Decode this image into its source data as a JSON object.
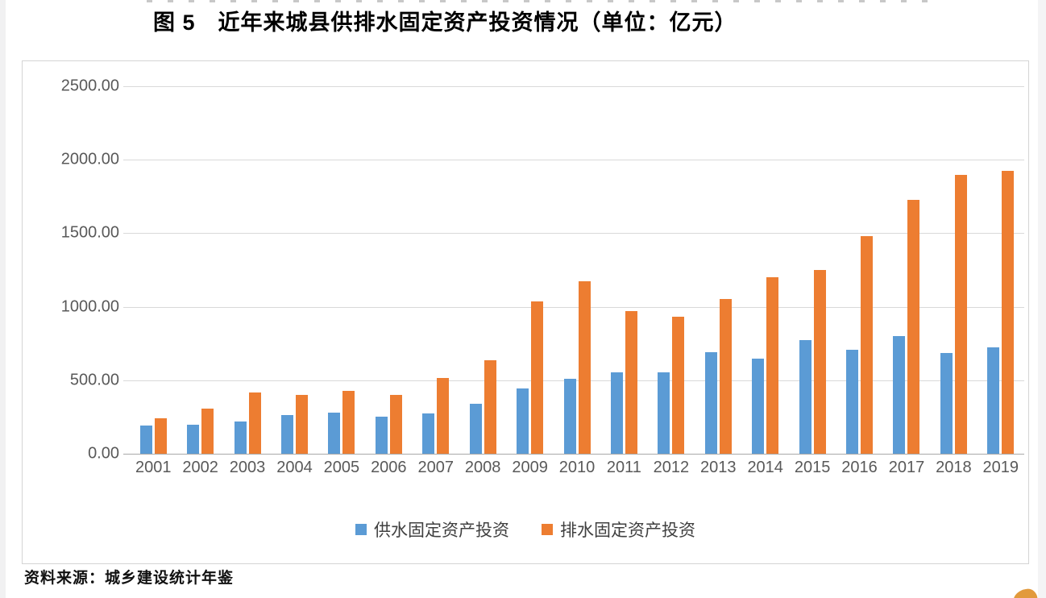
{
  "page": {
    "title": "图 5　近年来城县供排水固定资产投资情况（单位：亿元）",
    "source_note": "资料来源：城乡建设统计年鉴"
  },
  "colors": {
    "water_supply_series": "#5B9BD5",
    "drainage_series": "#ED7D31",
    "axis_text": "#595959",
    "gridline": "#D9D9D9",
    "axis_line": "#A9A9A9",
    "frame_border": "#D4D4D4"
  },
  "chart_data": {
    "type": "bar",
    "title": "图 5　近年来城县供排水固定资产投资情况（单位：亿元）",
    "unit": "亿元",
    "categories": [
      "2001",
      "2002",
      "2003",
      "2004",
      "2005",
      "2006",
      "2007",
      "2008",
      "2009",
      "2010",
      "2011",
      "2012",
      "2013",
      "2014",
      "2015",
      "2016",
      "2017",
      "2018",
      "2019"
    ],
    "series": [
      {
        "name": "供水固定资产投资",
        "color": "#5B9BD5",
        "values": [
          193,
          197,
          218,
          265,
          278,
          250,
          275,
          340,
          447,
          510,
          556,
          553,
          690,
          645,
          772,
          706,
          801,
          686,
          724
        ]
      },
      {
        "name": "排水固定资产投资",
        "color": "#ED7D31",
        "values": [
          243,
          305,
          418,
          403,
          428,
          400,
          515,
          634,
          1036,
          1174,
          968,
          934,
          1055,
          1200,
          1252,
          1483,
          1727,
          1895,
          1923
        ]
      }
    ],
    "ylim": [
      0,
      2500
    ],
    "yticks": [
      {
        "value": 0,
        "label": "0.00"
      },
      {
        "value": 500,
        "label": "500.00"
      },
      {
        "value": 1000,
        "label": "1000.00"
      },
      {
        "value": 1500,
        "label": "1500.00"
      },
      {
        "value": 2000,
        "label": "2000.00"
      },
      {
        "value": 2500,
        "label": "2500.00"
      }
    ],
    "grid": true,
    "legend_position": "bottom"
  }
}
